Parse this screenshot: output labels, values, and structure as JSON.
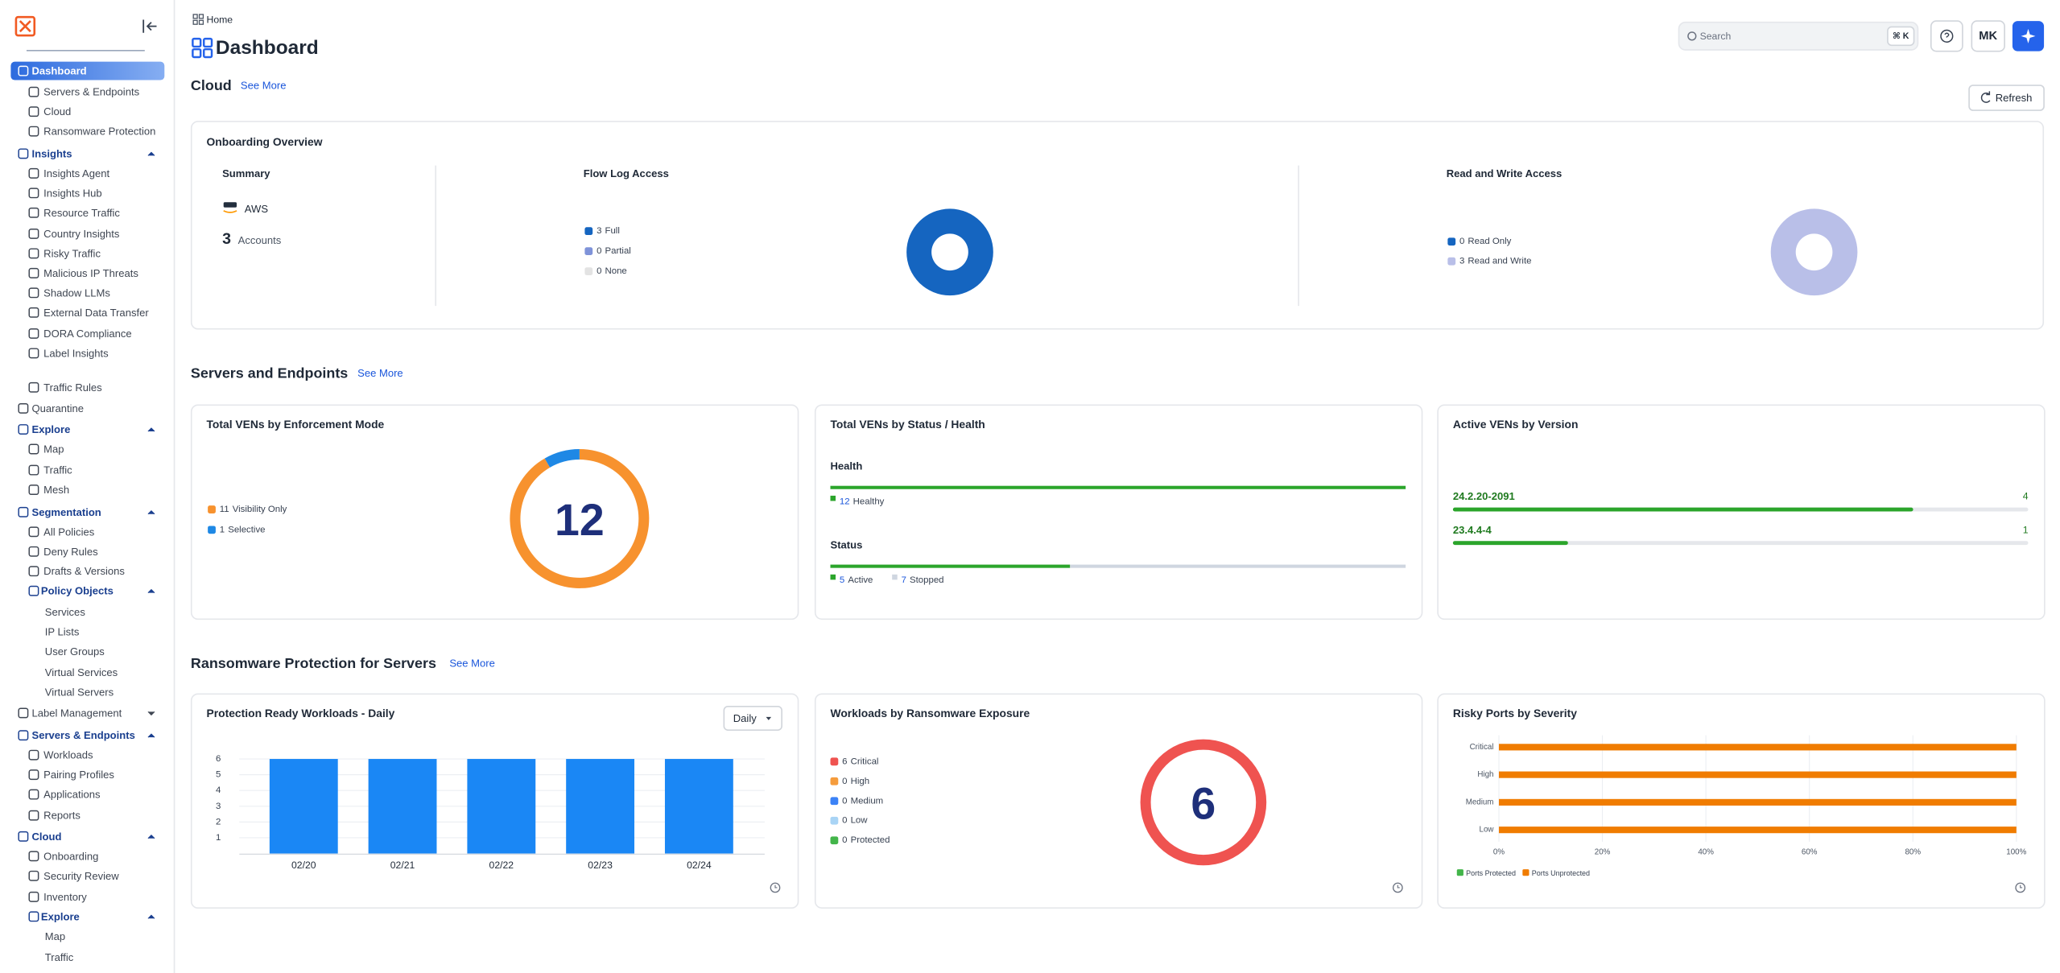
{
  "sidebar": {
    "items": [
      "Dashboard",
      "Servers & Endpoints",
      "Cloud",
      "Ransomware Protection",
      "Insights",
      "Insights Agent",
      "Insights Hub",
      "Resource Traffic",
      "Country Insights",
      "Risky Traffic",
      "Malicious IP Threats",
      "Shadow LLMs",
      "External Data Transfer",
      "DORA Compliance",
      "Label Insights",
      "Traffic Rules",
      "Quarantine",
      "Explore",
      "Map",
      "Traffic",
      "Mesh",
      "Segmentation",
      "All Policies",
      "Deny Rules",
      "Drafts & Versions",
      "Policy Objects",
      "Services",
      "IP Lists",
      "User Groups",
      "Virtual Services",
      "Virtual Servers",
      "Label Management",
      "Servers & Endpoints",
      "Workloads",
      "Pairing Profiles",
      "Applications",
      "Reports",
      "Cloud",
      "Onboarding",
      "Security Review",
      "Inventory",
      "Explore",
      "Map",
      "Traffic"
    ]
  },
  "header": {
    "breadcrumb": "Home",
    "title": "Dashboard",
    "search_placeholder": "Search",
    "shortcut": "⌘ K",
    "avatar": "MK"
  },
  "sections": [
    {
      "title": "Cloud",
      "link": "See More",
      "button": "Refresh"
    },
    {
      "title": "Servers and Endpoints",
      "link": "See More"
    },
    {
      "title": "Ransomware Protection for Servers",
      "link": "See More"
    }
  ],
  "onboarding": {
    "title": "Onboarding Overview",
    "summary_title": "Summary",
    "provider": "AWS",
    "accounts_count": 3,
    "accounts_label": "Accounts"
  },
  "chart_data": [
    {
      "type": "donut",
      "title": "Flow Log Access",
      "categories": [
        "Full",
        "Partial",
        "None"
      ],
      "values": [
        3,
        0,
        0
      ],
      "colors": [
        "#1565c0",
        "#7f93d9",
        "#e3e3e3"
      ]
    },
    {
      "type": "donut",
      "title": "Read and Write Access",
      "categories": [
        "Read Only",
        "Read and Write"
      ],
      "values": [
        0,
        3
      ],
      "colors": [
        "#1565c0",
        "#b9bfe8"
      ]
    },
    {
      "type": "donut",
      "title": "Total VENs by Enforcement Mode",
      "categories": [
        "Visibility Only",
        "Selective"
      ],
      "values": [
        11,
        1
      ],
      "colors": [
        "#f7922e",
        "#1e88e5"
      ],
      "total": 12
    },
    {
      "type": "status",
      "title": "Total VENs by Status / Health",
      "groups": [
        {
          "name": "Health",
          "series": [
            {
              "name": "Healthy",
              "color": "#2ba52b",
              "value": 12
            }
          ]
        },
        {
          "name": "Status",
          "series": [
            {
              "name": "Active",
              "color": "#2ba52b",
              "value": 5
            },
            {
              "name": "Stopped",
              "color": "#cfd6e0",
              "value": 7
            }
          ]
        }
      ]
    },
    {
      "type": "progress",
      "title": "Active VENs by Version",
      "categories": [
        "24.2.20-2091",
        "23.4.4-4"
      ],
      "values": [
        4,
        1
      ],
      "color": "#2ba52b"
    },
    {
      "type": "bar",
      "title": "Protection Ready Workloads - Daily",
      "control": "Daily",
      "categories": [
        "02/20",
        "02/21",
        "02/22",
        "02/23",
        "02/24"
      ],
      "values": [
        6,
        6,
        6,
        6,
        6
      ],
      "color": "#1a87f5",
      "ylim": [
        0,
        6
      ],
      "yticks": [
        1,
        2,
        3,
        4,
        5,
        6
      ],
      "grid": true
    },
    {
      "type": "donut",
      "title": "Workloads by Ransomware Exposure",
      "categories": [
        "Critical",
        "High",
        "Medium",
        "Low",
        "Protected"
      ],
      "values": [
        6,
        0,
        0,
        0,
        0
      ],
      "colors": [
        "#ef5350",
        "#f59c3c",
        "#3b82f6",
        "#a9d4f5",
        "#43b54a"
      ],
      "total": 6
    },
    {
      "type": "hbar",
      "title": "Risky Ports by Severity",
      "categories": [
        "Critical",
        "High",
        "Medium",
        "Low"
      ],
      "series": [
        {
          "name": "Ports Protected",
          "color": "#43b54a",
          "values": [
            0,
            0,
            0,
            0
          ]
        },
        {
          "name": "Ports Unprotected",
          "color": "#f07c00",
          "values": [
            100,
            100,
            100,
            100
          ]
        }
      ],
      "xlim": [
        0,
        100
      ],
      "xticks": [
        {
          "value": 0,
          "label": "0%"
        },
        {
          "value": 20,
          "label": "20%"
        },
        {
          "value": 40,
          "label": "40%"
        },
        {
          "value": 60,
          "label": "60%"
        },
        {
          "value": 80,
          "label": "80%"
        },
        {
          "value": 100,
          "label": "100%"
        }
      ],
      "grid": true
    }
  ]
}
